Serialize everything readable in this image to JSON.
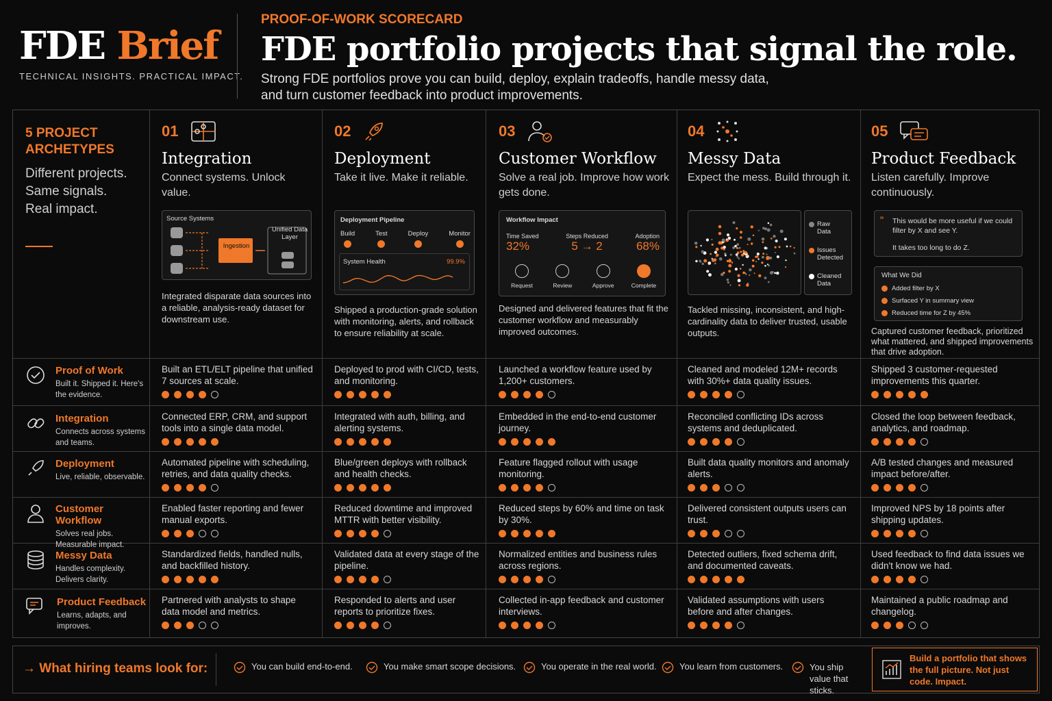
{
  "header": {
    "logo_main": "FDE ",
    "logo_accent": "Brief",
    "tagline": "TECHNICAL INSIGHTS. PRACTICAL IMPACT.",
    "eyebrow": "PROOF-OF-WORK SCORECARD",
    "title": "FDE portfolio projects that signal the role.",
    "subtitle": "Strong FDE portfolios prove you can build, deploy, explain tradeoffs, handle messy data, and turn customer feedback into product improvements."
  },
  "archetypes": {
    "title": "5 PROJECT ARCHETYPES",
    "lines": [
      "Different projects.",
      "Same signals.",
      "Real impact."
    ]
  },
  "columns": [
    {
      "num": "01",
      "name": "Integration",
      "tagline": "Connect systems. Unlock value.",
      "icon": "puzzle-icon",
      "desc": "Integrated disparate data sources into a reliable, analysis-ready dataset for downstream use."
    },
    {
      "num": "02",
      "name": "Deployment",
      "tagline": "Take it live. Make it reliable.",
      "icon": "rocket-icon",
      "desc": "Shipped a production-grade solution with monitoring, alerts, and rollback to ensure reliability at scale."
    },
    {
      "num": "03",
      "name": "Customer Workflow",
      "tagline": "Solve a real job. Improve how work gets done.",
      "icon": "user-check-icon",
      "desc": "Designed and delivered features that fit the customer workflow and measurably improved outcomes."
    },
    {
      "num": "04",
      "name": "Messy Data",
      "tagline": "Expect the mess. Build through it.",
      "icon": "scatter-icon",
      "desc": "Tackled missing, inconsistent, and high-cardinality data to deliver trusted, usable outputs."
    },
    {
      "num": "05",
      "name": "Product Feedback",
      "tagline": "Listen carefully. Improve continuously.",
      "icon": "chat-icon",
      "desc": "Captured customer feedback, prioritized what mattered, and shipped improvements that drive adoption."
    }
  ],
  "cards": {
    "integration": {
      "source": "Source Systems",
      "ingest": "Ingestion",
      "target": "Unified Data Layer"
    },
    "deployment": {
      "title": "Deployment Pipeline",
      "stages": [
        "Build",
        "Test",
        "Deploy",
        "Monitor"
      ],
      "health": "System Health",
      "health_val": "99.9%"
    },
    "workflow": {
      "title": "Workflow Impact",
      "metrics": [
        {
          "label": "Time Saved",
          "value": "32%"
        },
        {
          "label": "Steps Reduced",
          "value": "5 → 2"
        },
        {
          "label": "Adoption",
          "value": "68%"
        }
      ],
      "steps": [
        "Request",
        "Review",
        "Approve",
        "Complete"
      ]
    },
    "messy": {
      "legend": [
        "Raw Data",
        "Issues Detected",
        "Cleaned Data"
      ]
    },
    "feedback": {
      "quote1": "This would be more useful if we could filter by X and see Y.",
      "quote2": "It takes too long to do Z.",
      "did_title": "What We Did",
      "did": [
        "Added filter by X",
        "Surfaced Y in summary view",
        "Reduced time for Z by 45%"
      ]
    }
  },
  "rows": [
    {
      "name": "Proof of Work",
      "sub": "Built it. Shipped it. Here's the evidence.",
      "icon": "check-circle-icon",
      "cells": [
        {
          "text": "Built an ETL/ELT pipeline that unified 7 sources at scale.",
          "score": 4
        },
        {
          "text": "Deployed to prod with CI/CD, tests, and monitoring.",
          "score": 5
        },
        {
          "text": "Launched a workflow feature used by 1,200+ customers.",
          "score": 4
        },
        {
          "text": "Cleaned and modeled 12M+ records with 30%+ data quality issues.",
          "score": 4
        },
        {
          "text": "Shipped 3 customer-requested improvements this quarter.",
          "score": 5
        }
      ]
    },
    {
      "name": "Integration",
      "sub": "Connects across systems and teams.",
      "icon": "link-icon",
      "cells": [
        {
          "text": "Connected ERP, CRM, and support tools into a single data model.",
          "score": 5
        },
        {
          "text": "Integrated with auth, billing, and alerting systems.",
          "score": 5
        },
        {
          "text": "Embedded in the end-to-end customer journey.",
          "score": 5
        },
        {
          "text": "Reconciled conflicting IDs across systems and deduplicated.",
          "score": 4
        },
        {
          "text": "Closed the loop between feedback, analytics, and roadmap.",
          "score": 4
        }
      ]
    },
    {
      "name": "Deployment",
      "sub": "Live, reliable, observable.",
      "icon": "rocket-icon",
      "cells": [
        {
          "text": "Automated pipeline with scheduling, retries, and data quality checks.",
          "score": 4
        },
        {
          "text": "Blue/green deploys with rollback and health checks.",
          "score": 5
        },
        {
          "text": "Feature flagged rollout with usage monitoring.",
          "score": 4
        },
        {
          "text": "Built data quality monitors and anomaly alerts.",
          "score": 3
        },
        {
          "text": "A/B tested changes and measured impact before/after.",
          "score": 4
        }
      ]
    },
    {
      "name": "Customer Workflow",
      "sub": "Solves real jobs. Measurable impact.",
      "icon": "user-icon",
      "cells": [
        {
          "text": "Enabled faster reporting and fewer manual exports.",
          "score": 3
        },
        {
          "text": "Reduced downtime and improved MTTR with better visibility.",
          "score": 4
        },
        {
          "text": "Reduced steps by 60% and time on task by 30%.",
          "score": 5
        },
        {
          "text": "Delivered consistent outputs users can trust.",
          "score": 3
        },
        {
          "text": "Improved NPS by 18 points after shipping updates.",
          "score": 4
        }
      ]
    },
    {
      "name": "Messy Data",
      "sub": "Handles complexity. Delivers clarity.",
      "icon": "database-icon",
      "cells": [
        {
          "text": "Standardized fields, handled nulls, and backfilled history.",
          "score": 5
        },
        {
          "text": "Validated data at every stage of the pipeline.",
          "score": 4
        },
        {
          "text": "Normalized entities and business rules across regions.",
          "score": 4
        },
        {
          "text": "Detected outliers, fixed schema drift, and documented caveats.",
          "score": 5
        },
        {
          "text": "Used feedback to find data issues we didn't know we had.",
          "score": 4
        }
      ]
    },
    {
      "name": "Product Feedback",
      "sub": "Learns, adapts, and improves.",
      "icon": "chat-icon",
      "cells": [
        {
          "text": "Partnered with analysts to shape data model and metrics.",
          "score": 3
        },
        {
          "text": "Responded to alerts and user reports to prioritize fixes.",
          "score": 4
        },
        {
          "text": "Collected in-app feedback and customer interviews.",
          "score": 4
        },
        {
          "text": "Validated assumptions with users before and after changes.",
          "score": 4
        },
        {
          "text": "Maintained a public roadmap and changelog.",
          "score": 3
        }
      ]
    }
  ],
  "footer": {
    "label": "→  What hiring teams look for:",
    "items": [
      "You can build end-to-end.",
      "You make smart scope decisions.",
      "You operate in the real world.",
      "You learn from customers.",
      "You ship value that sticks."
    ],
    "cta": "Build a portfolio that shows the full picture. Not just code. Impact."
  },
  "colors": {
    "accent": "#f0782a",
    "background": "#0b0b0b",
    "border": "#444444"
  }
}
